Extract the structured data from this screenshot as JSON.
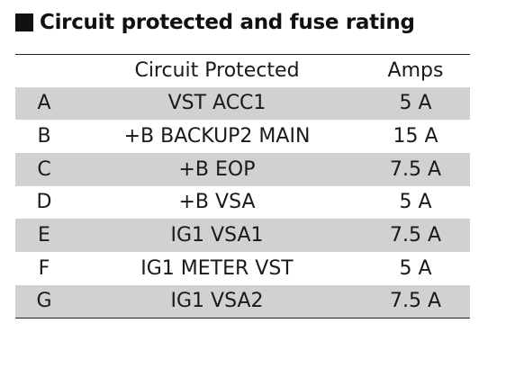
{
  "heading": "Circuit protected and fuse rating",
  "table": {
    "headers": [
      "",
      "Circuit Protected",
      "Amps"
    ],
    "rows": [
      {
        "letter": "A",
        "circuit": "VST ACC1",
        "amps": "5 A"
      },
      {
        "letter": "B",
        "circuit": "+B BACKUP2 MAIN",
        "amps": "15 A"
      },
      {
        "letter": "C",
        "circuit": "+B EOP",
        "amps": "7.5 A"
      },
      {
        "letter": "D",
        "circuit": "+B VSA",
        "amps": "5 A"
      },
      {
        "letter": "E",
        "circuit": "IG1 VSA1",
        "amps": "7.5 A"
      },
      {
        "letter": "F",
        "circuit": "IG1 METER VST",
        "amps": "5 A"
      },
      {
        "letter": "G",
        "circuit": "IG1 VSA2",
        "amps": "7.5 A"
      }
    ],
    "shaded_row_color": "#d1d1d1"
  }
}
